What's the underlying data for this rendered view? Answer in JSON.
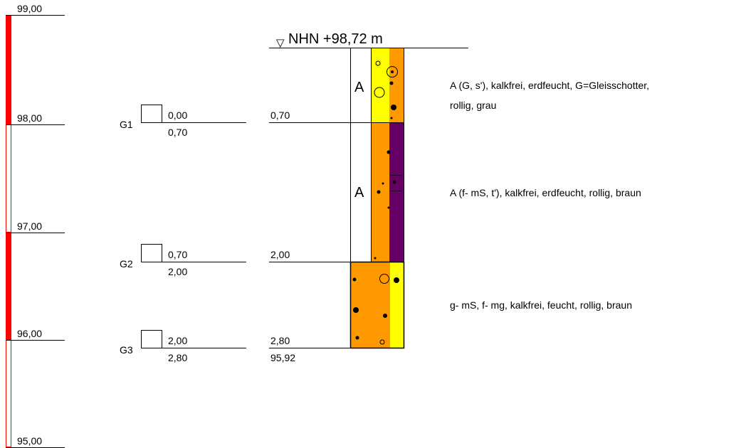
{
  "scale": {
    "labels": [
      "99,00",
      "98,00",
      "97,00",
      "96,00",
      "95,00"
    ],
    "bar_color": "#ff0000"
  },
  "water_level": {
    "label": "NHN +98,72 m",
    "symbol": "▽"
  },
  "samples": [
    {
      "id": "G1",
      "top": "0,00",
      "bottom": "0,70"
    },
    {
      "id": "G2",
      "top": "0,70",
      "bottom": "2,00"
    },
    {
      "id": "G3",
      "top": "2,00",
      "bottom": "2,80"
    }
  ],
  "depth_marks": [
    "0,70",
    "2,00",
    "2,80"
  ],
  "base_elevation": "95,92",
  "layers": [
    {
      "code": "A",
      "description_line1": "A (G, s'), kalkfrei, erdfeucht, G=Gleisschotter,",
      "description_line2": "rollig, grau",
      "colors": [
        "#ffff00",
        "#ff9900"
      ]
    },
    {
      "code": "A",
      "description_line1": "A (f- mS, t'), kalkfrei, erdfeucht, rollig, braun",
      "description_line2": "",
      "colors": [
        "#ff9900",
        "#660066"
      ]
    },
    {
      "code": "",
      "description_line1": "g- mS, f- mg, kalkfrei, feucht, rollig, braun",
      "description_line2": "",
      "colors": [
        "#ff9900",
        "#ffff00"
      ]
    }
  ]
}
